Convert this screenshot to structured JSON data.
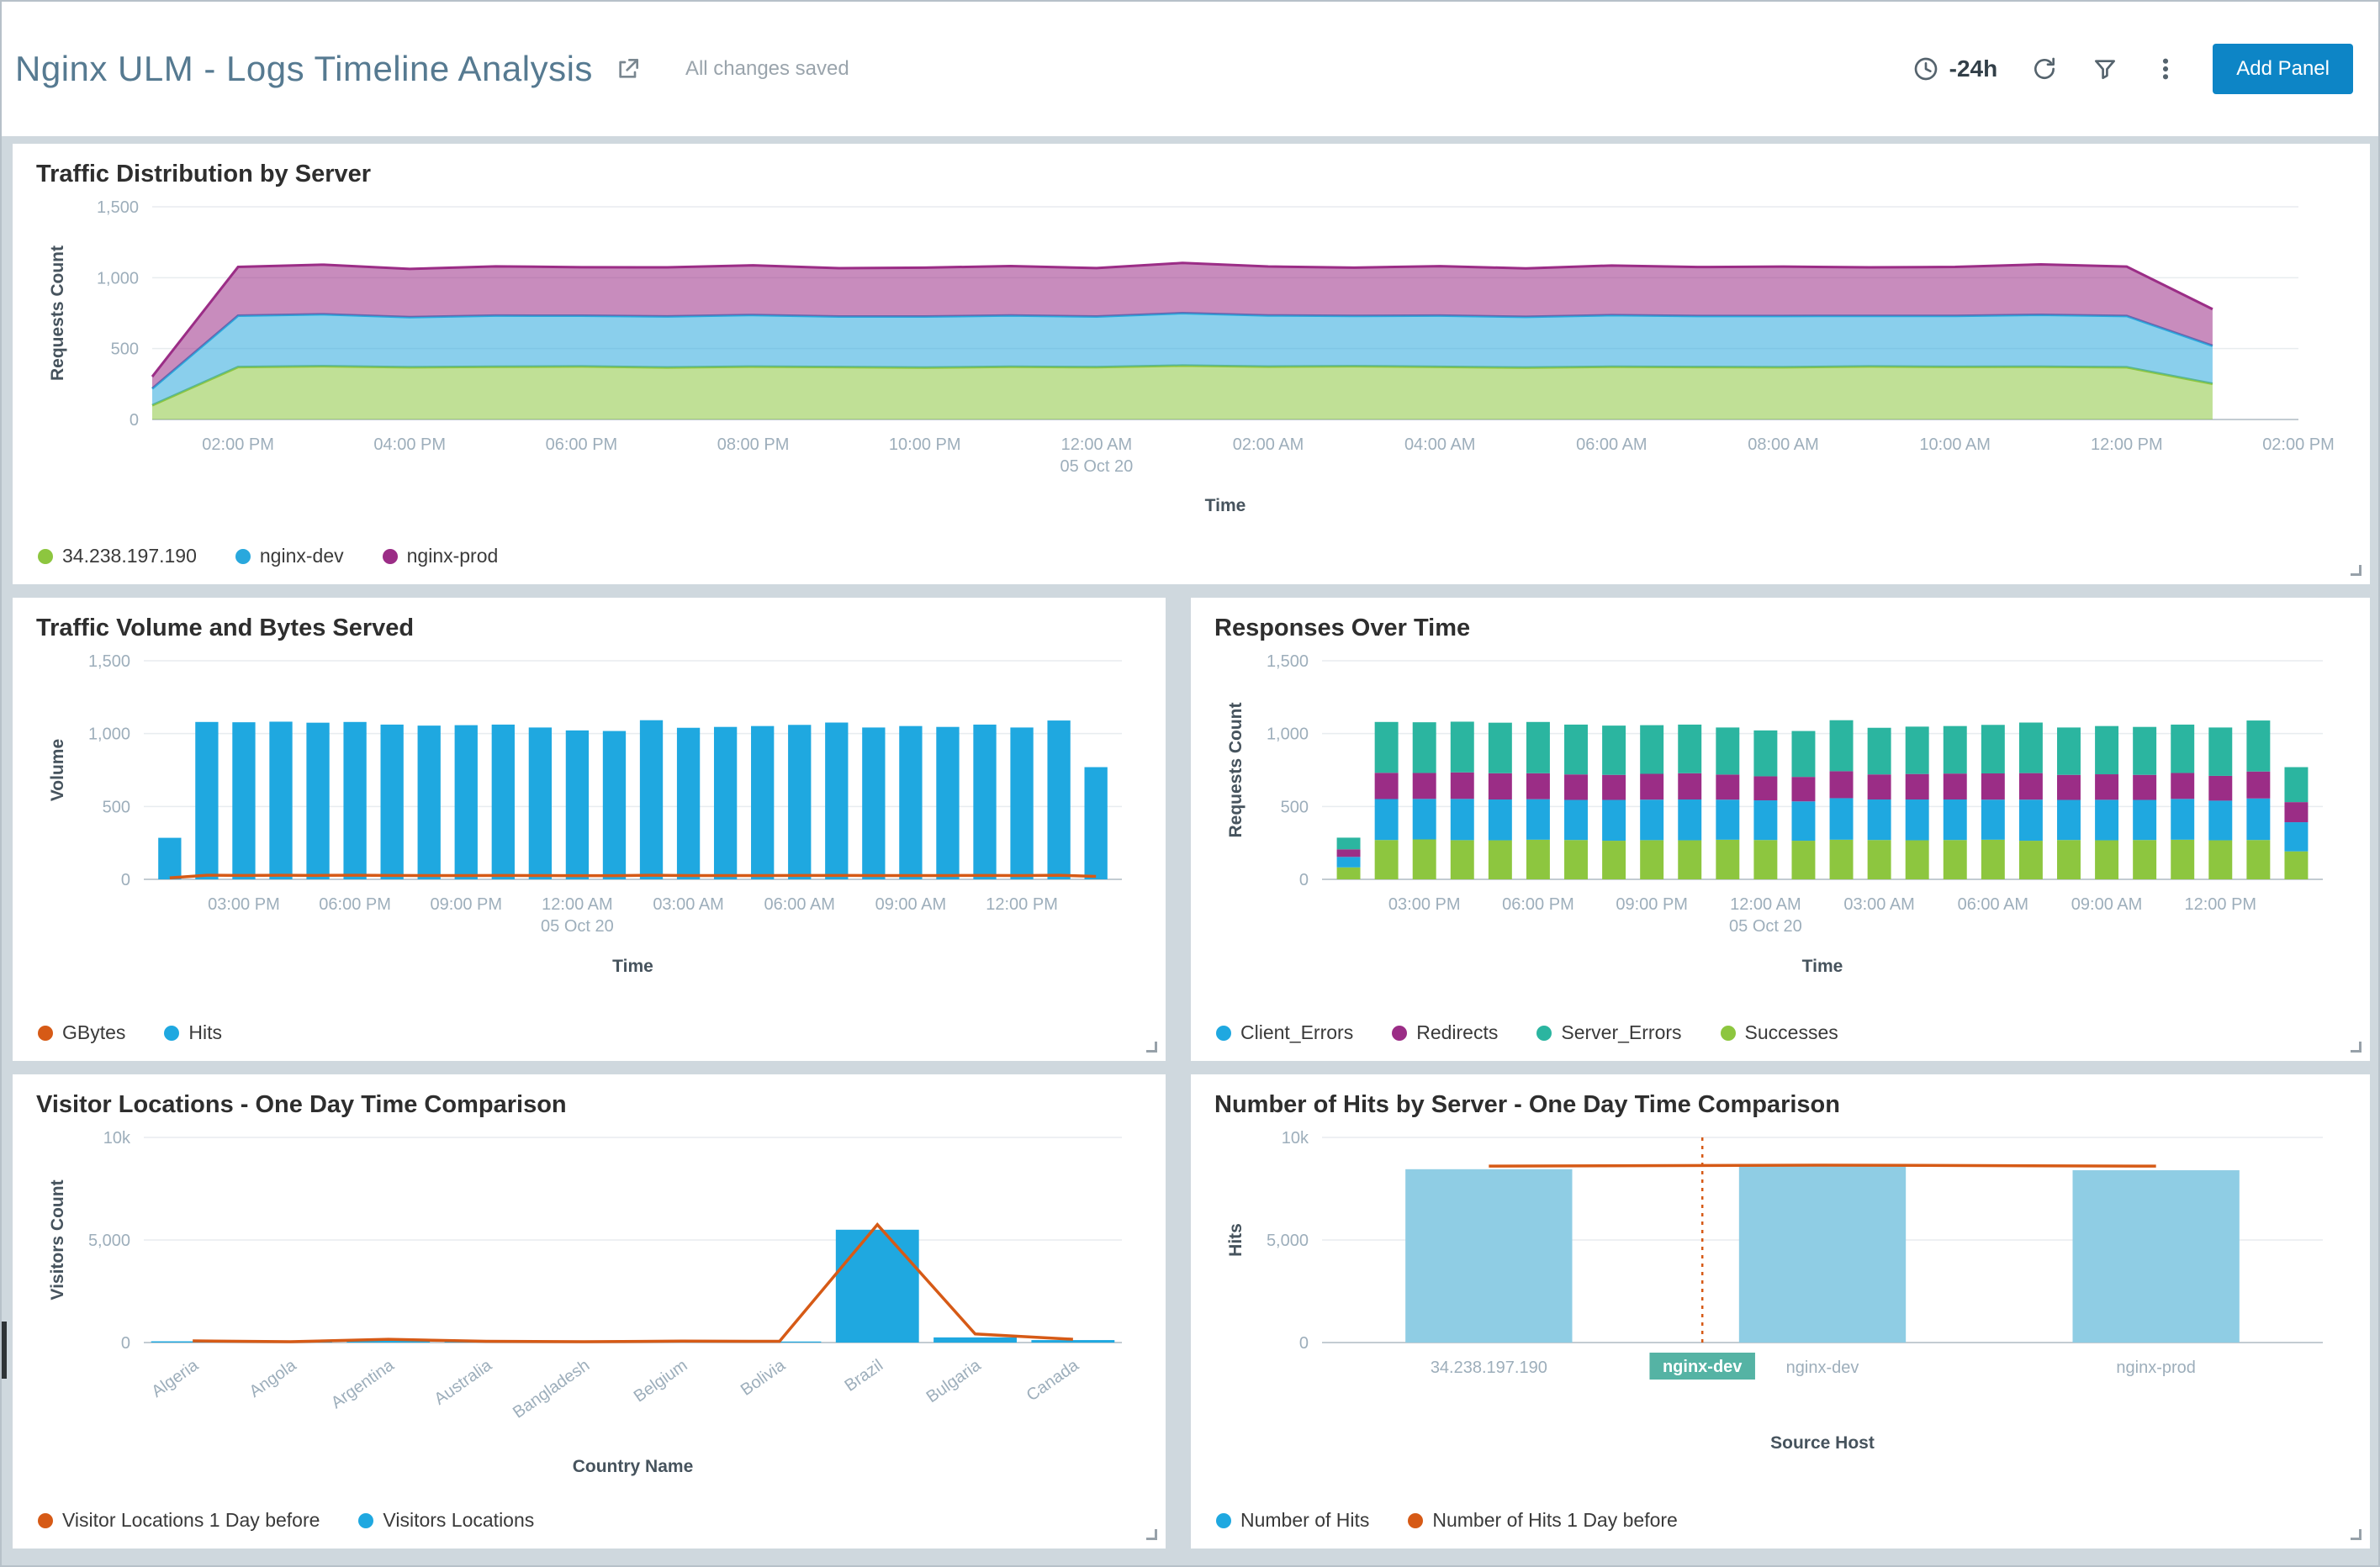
{
  "header": {
    "title": "Nginx ULM - Logs Timeline Analysis",
    "saved_status": "All changes saved",
    "time_range": "-24h",
    "add_panel_label": "Add Panel",
    "accent_color": "#0d85c6"
  },
  "panels": [
    {
      "title": "Traffic Distribution by Server"
    },
    {
      "title": "Traffic Volume and Bytes Served"
    },
    {
      "title": "Responses Over Time"
    },
    {
      "title": "Visitor Locations - One Day Time Comparison"
    },
    {
      "title": "Number of Hits by Server - One Day Time Comparison"
    }
  ],
  "chart_data": [
    {
      "id": "traffic_distribution",
      "type": "area",
      "title": "Traffic Distribution by Server",
      "stacked": true,
      "xlabel": "Time",
      "ylabel": "Requests Count",
      "ylim": [
        0,
        1500
      ],
      "yticks": [
        {
          "v": 0,
          "label": "0"
        },
        {
          "v": 500,
          "label": "500"
        },
        {
          "v": 1000,
          "label": "1,000"
        },
        {
          "v": 1500,
          "label": "1,500"
        }
      ],
      "xlim": [
        0,
        25
      ],
      "x": [
        0,
        1,
        2,
        3,
        4,
        5,
        6,
        7,
        8,
        9,
        10,
        11,
        12,
        13,
        14,
        15,
        16,
        17,
        18,
        19,
        20,
        21,
        22,
        23,
        24
      ],
      "xticks": [
        {
          "v": 1,
          "label": "02:00 PM"
        },
        {
          "v": 3,
          "label": "04:00 PM"
        },
        {
          "v": 5,
          "label": "06:00 PM"
        },
        {
          "v": 7,
          "label": "08:00 PM"
        },
        {
          "v": 9,
          "label": "10:00 PM"
        },
        {
          "v": 11,
          "label": "12:00 AM",
          "sub": "05 Oct 20"
        },
        {
          "v": 13,
          "label": "02:00 AM"
        },
        {
          "v": 15,
          "label": "04:00 AM"
        },
        {
          "v": 17,
          "label": "06:00 AM"
        },
        {
          "v": 19,
          "label": "08:00 AM"
        },
        {
          "v": 21,
          "label": "10:00 AM"
        },
        {
          "v": 23,
          "label": "12:00 PM"
        },
        {
          "v": 25,
          "label": "02:00 PM"
        }
      ],
      "series": [
        {
          "name": "34.238.197.190",
          "kind": "area",
          "color": "#8dc63f",
          "values": [
            100,
            370,
            376,
            368,
            372,
            374,
            367,
            373,
            370,
            366,
            372,
            369,
            380,
            373,
            376,
            371,
            366,
            372,
            370,
            368,
            374,
            371,
            372,
            368,
            252
          ]
        },
        {
          "name": "nginx-dev",
          "kind": "area",
          "color": "#29a8dd",
          "values": [
            118,
            362,
            366,
            354,
            361,
            358,
            360,
            364,
            356,
            360,
            362,
            357,
            370,
            361,
            355,
            362,
            358,
            364,
            360,
            362,
            357,
            360,
            366,
            362,
            268
          ]
        },
        {
          "name": "nginx-prod",
          "kind": "area",
          "color": "#9b2d86",
          "values": [
            84,
            344,
            350,
            340,
            347,
            342,
            346,
            350,
            341,
            345,
            348,
            342,
            354,
            345,
            340,
            348,
            342,
            350,
            345,
            348,
            342,
            345,
            356,
            348,
            258
          ]
        }
      ],
      "legend": [
        {
          "label": "34.238.197.190",
          "color": "#8dc63f"
        },
        {
          "label": "nginx-dev",
          "color": "#29a8dd"
        },
        {
          "label": "nginx-prod",
          "color": "#9b2d86"
        }
      ]
    },
    {
      "id": "traffic_volume",
      "type": "bar",
      "title": "Traffic Volume and Bytes Served",
      "xlabel": "Time",
      "ylabel": "Volume",
      "ylim": [
        0,
        1500
      ],
      "yticks": [
        {
          "v": 0,
          "label": "0"
        },
        {
          "v": 500,
          "label": "500"
        },
        {
          "v": 1000,
          "label": "1,000"
        },
        {
          "v": 1500,
          "label": "1,500"
        }
      ],
      "xlim": [
        -0.7,
        25.7
      ],
      "x": [
        0,
        1,
        2,
        3,
        4,
        5,
        6,
        7,
        8,
        9,
        10,
        11,
        12,
        13,
        14,
        15,
        16,
        17,
        18,
        19,
        20,
        21,
        22,
        23,
        24,
        25
      ],
      "bar_frac": 0.62,
      "xticks": [
        {
          "v": 2,
          "label": "03:00 PM"
        },
        {
          "v": 5,
          "label": "06:00 PM"
        },
        {
          "v": 8,
          "label": "09:00 PM"
        },
        {
          "v": 11,
          "label": "12:00 AM",
          "sub": "05 Oct 20"
        },
        {
          "v": 14,
          "label": "03:00 AM"
        },
        {
          "v": 17,
          "label": "06:00 AM"
        },
        {
          "v": 20,
          "label": "09:00 AM"
        },
        {
          "v": 23,
          "label": "12:00 PM"
        }
      ],
      "series": [
        {
          "name": "Hits",
          "kind": "bar",
          "color": "#1fa8e0",
          "values": [
            285,
            1080,
            1078,
            1082,
            1075,
            1080,
            1062,
            1055,
            1058,
            1062,
            1042,
            1022,
            1018,
            1092,
            1040,
            1046,
            1052,
            1060,
            1076,
            1042,
            1052,
            1046,
            1062,
            1042,
            1090,
            770
          ]
        },
        {
          "name": "GBytes",
          "kind": "line",
          "color": "#d65a16",
          "values": [
            10,
            28,
            27,
            28,
            27,
            28,
            27,
            26,
            26,
            27,
            26,
            25,
            25,
            28,
            26,
            26,
            26,
            27,
            27,
            26,
            26,
            26,
            27,
            26,
            28,
            20
          ]
        }
      ],
      "legend": [
        {
          "label": "GBytes",
          "color": "#d65a16"
        },
        {
          "label": "Hits",
          "color": "#1fa8e0"
        }
      ]
    },
    {
      "id": "responses_over_time",
      "type": "bar",
      "title": "Responses Over Time",
      "stacked": true,
      "xlabel": "Time",
      "ylabel": "Requests Count",
      "ylim": [
        0,
        1500
      ],
      "yticks": [
        {
          "v": 0,
          "label": "0"
        },
        {
          "v": 500,
          "label": "500"
        },
        {
          "v": 1000,
          "label": "1,000"
        },
        {
          "v": 1500,
          "label": "1,500"
        }
      ],
      "xlim": [
        -0.7,
        25.7
      ],
      "x": [
        0,
        1,
        2,
        3,
        4,
        5,
        6,
        7,
        8,
        9,
        10,
        11,
        12,
        13,
        14,
        15,
        16,
        17,
        18,
        19,
        20,
        21,
        22,
        23,
        24,
        25
      ],
      "bar_frac": 0.62,
      "xticks": [
        {
          "v": 2,
          "label": "03:00 PM"
        },
        {
          "v": 5,
          "label": "06:00 PM"
        },
        {
          "v": 8,
          "label": "09:00 PM"
        },
        {
          "v": 11,
          "label": "12:00 AM",
          "sub": "05 Oct 20"
        },
        {
          "v": 14,
          "label": "03:00 AM"
        },
        {
          "v": 17,
          "label": "06:00 AM"
        },
        {
          "v": 20,
          "label": "09:00 AM"
        },
        {
          "v": 23,
          "label": "12:00 PM"
        }
      ],
      "series": [
        {
          "name": "Successes",
          "kind": "bar",
          "color": "#8dc63f",
          "values": [
            82,
            270,
            274,
            269,
            268,
            272,
            270,
            265,
            269,
            268,
            272,
            270,
            265,
            272,
            270,
            268,
            270,
            272,
            265,
            270,
            268,
            270,
            272,
            268,
            270,
            192
          ]
        },
        {
          "name": "Client_Errors",
          "kind": "bar",
          "color": "#1fa8e0",
          "values": [
            72,
            281,
            278,
            283,
            280,
            278,
            275,
            280,
            278,
            280,
            275,
            272,
            270,
            285,
            278,
            280,
            278,
            275,
            282,
            275,
            278,
            275,
            280,
            272,
            285,
            200
          ]
        },
        {
          "name": "Redirects",
          "kind": "bar",
          "color": "#9b2d86",
          "values": [
            52,
            180,
            178,
            182,
            180,
            178,
            175,
            172,
            177,
            180,
            172,
            165,
            168,
            185,
            172,
            175,
            178,
            180,
            182,
            172,
            175,
            172,
            178,
            170,
            185,
            138
          ]
        },
        {
          "name": "Server_Errors",
          "kind": "bar",
          "color": "#2bb5a0",
          "values": [
            80,
            349,
            348,
            348,
            347,
            352,
            342,
            338,
            334,
            334,
            323,
            315,
            315,
            350,
            320,
            325,
            326,
            333,
            347,
            325,
            331,
            329,
            332,
            332,
            350,
            240
          ]
        }
      ],
      "legend": [
        {
          "label": "Client_Errors",
          "color": "#1fa8e0"
        },
        {
          "label": "Redirects",
          "color": "#9b2d86"
        },
        {
          "label": "Server_Errors",
          "color": "#2bb5a0"
        },
        {
          "label": "Successes",
          "color": "#8dc63f"
        }
      ]
    },
    {
      "id": "visitor_locations",
      "type": "bar",
      "title": "Visitor Locations - One Day Time Comparison",
      "xlabel": "Country Name",
      "ylabel": "Visitors Count",
      "ylim": [
        0,
        10000
      ],
      "yticks": [
        {
          "v": 0,
          "label": "0"
        },
        {
          "v": 5000,
          "label": "5,000"
        },
        {
          "v": 10000,
          "label": "10k"
        }
      ],
      "categories": [
        "Algeria",
        "Angola",
        "Argentina",
        "Australia",
        "Bangladesh",
        "Belgium",
        "Bolivia",
        "Brazil",
        "Bulgaria",
        "Canada"
      ],
      "rotate_labels": true,
      "bar_frac": 0.85,
      "series": [
        {
          "name": "Visitors Locations",
          "kind": "bar",
          "color": "#1fa8e0",
          "values": [
            60,
            30,
            120,
            40,
            30,
            60,
            50,
            5500,
            250,
            120
          ]
        },
        {
          "name": "Visitor Locations 1 Day before",
          "kind": "line",
          "color": "#d65a16",
          "values": [
            80,
            40,
            160,
            60,
            40,
            70,
            60,
            5750,
            420,
            160
          ]
        }
      ],
      "legend": [
        {
          "label": "Visitor Locations 1 Day before",
          "color": "#d65a16"
        },
        {
          "label": "Visitors Locations",
          "color": "#1fa8e0"
        }
      ]
    },
    {
      "id": "hits_by_server",
      "type": "bar",
      "title": "Number of Hits by Server - One Day Time Comparison",
      "xlabel": "Source Host",
      "ylabel": "Hits",
      "ylim": [
        0,
        10000
      ],
      "yticks": [
        {
          "v": 0,
          "label": "0"
        },
        {
          "v": 5000,
          "label": "5,000"
        },
        {
          "v": 10000,
          "label": "10k"
        }
      ],
      "categories": [
        "34.238.197.190",
        "nginx-dev",
        "nginx-prod"
      ],
      "bar_frac": 0.5,
      "crosshair": {
        "frac": 0.38,
        "label": "nginx-dev",
        "color": "#d65a16",
        "bg": "#55b3a4"
      },
      "series": [
        {
          "name": "Number of Hits",
          "kind": "bar",
          "color": "#8fcde4",
          "values": [
            8450,
            8600,
            8400
          ]
        },
        {
          "name": "Number of Hits 1 Day before",
          "kind": "line",
          "color": "#d65a16",
          "values": [
            8600,
            8650,
            8600
          ]
        }
      ],
      "legend": [
        {
          "label": "Number of Hits",
          "color": "#1fa8e0"
        },
        {
          "label": "Number of Hits 1 Day before",
          "color": "#d65a16"
        }
      ]
    }
  ]
}
